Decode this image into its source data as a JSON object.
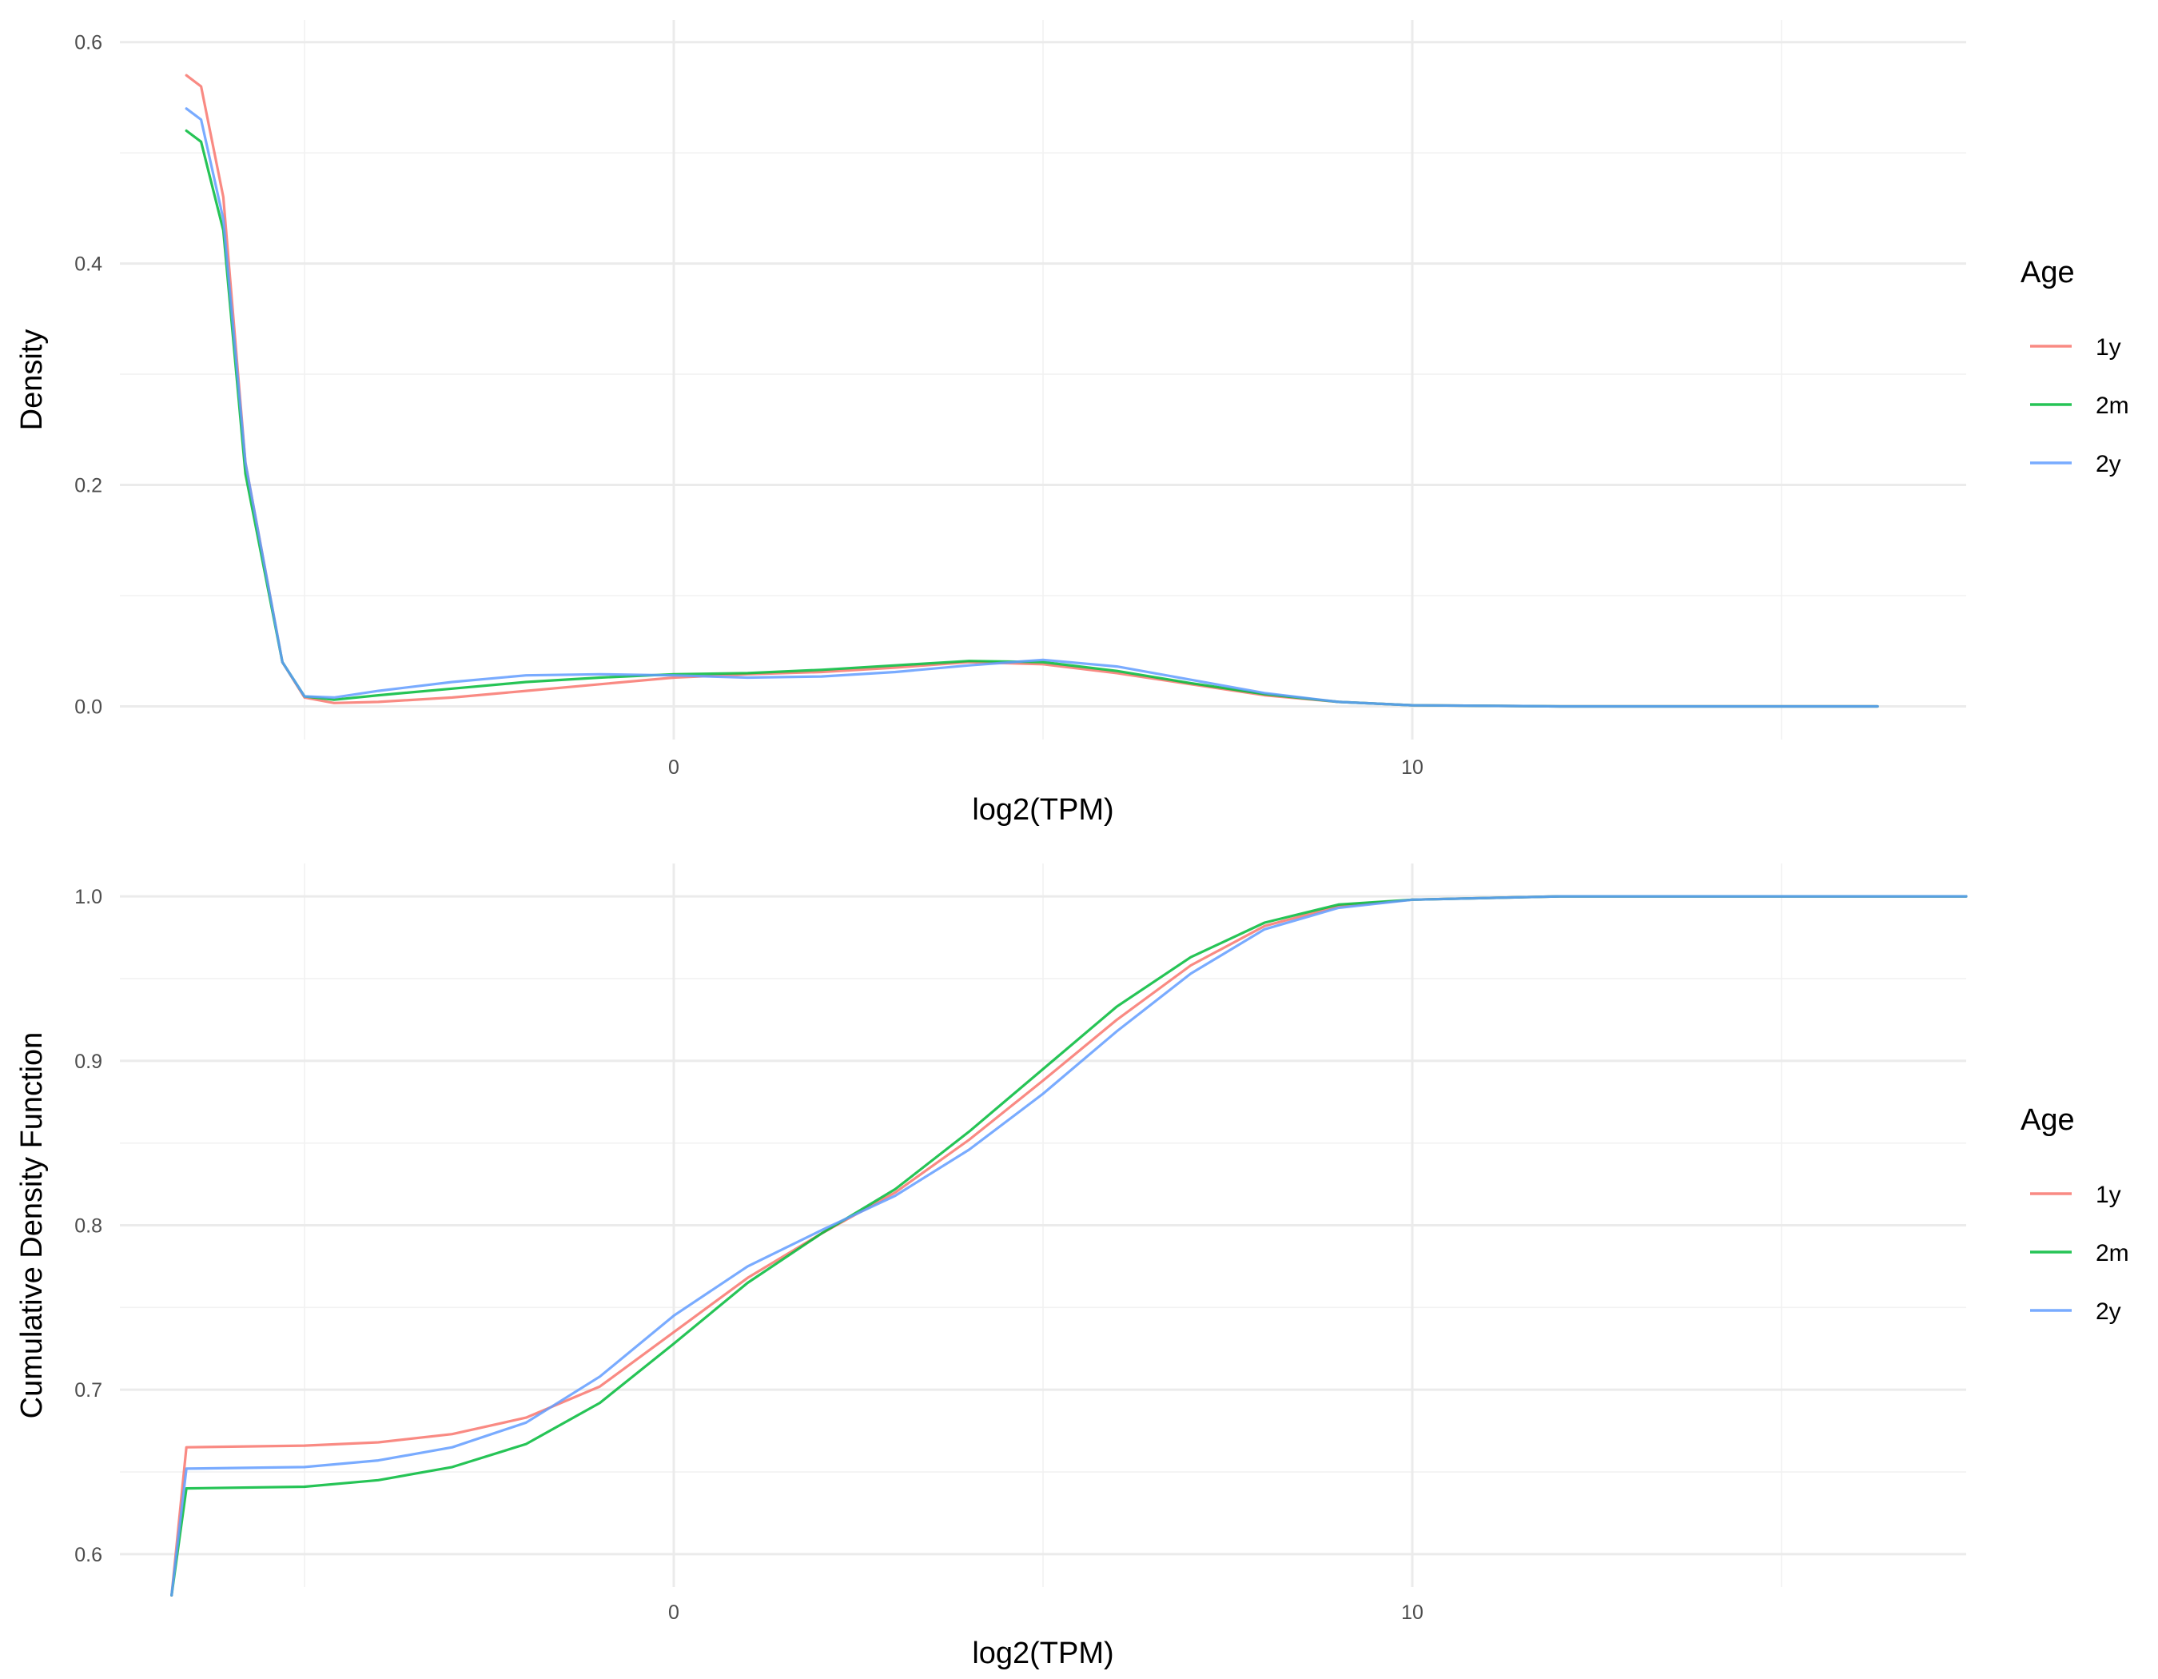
{
  "colors": {
    "1y": "#F8766D",
    "2m": "#00BA38",
    "2y": "#619CFF"
  },
  "chart_data": [
    {
      "type": "line",
      "xlabel": "log2(TPM)",
      "ylabel": "Density",
      "xlim": [
        -7.5,
        17.5
      ],
      "ylim": [
        -0.03,
        0.62
      ],
      "x_ticks": [
        0,
        10
      ],
      "x_tick_labels": [
        "0",
        "10"
      ],
      "y_ticks": [
        0.0,
        0.2,
        0.4,
        0.6
      ],
      "y_tick_labels": [
        "0.0",
        "0.2",
        "0.4",
        "0.6"
      ],
      "grid": true,
      "legend": {
        "title": "Age",
        "position": "right",
        "entries": [
          "1y",
          "2m",
          "2y"
        ]
      },
      "series": [
        {
          "name": "1y",
          "x": [
            -6.6,
            -6.4,
            -6.1,
            -5.8,
            -5.3,
            -5.0,
            -4.6,
            -4.0,
            -3.0,
            -2.0,
            -1.0,
            0.0,
            1.0,
            2.0,
            3.0,
            4.0,
            5.0,
            6.0,
            7.0,
            8.0,
            9.0,
            10.0,
            12.0,
            14.0,
            16.3
          ],
          "y": [
            0.57,
            0.56,
            0.46,
            0.22,
            0.04,
            0.008,
            0.003,
            0.004,
            0.008,
            0.014,
            0.02,
            0.026,
            0.029,
            0.031,
            0.035,
            0.04,
            0.038,
            0.03,
            0.02,
            0.01,
            0.004,
            0.001,
            0.0,
            0.0,
            0.0
          ]
        },
        {
          "name": "2m",
          "x": [
            -6.6,
            -6.4,
            -6.1,
            -5.8,
            -5.3,
            -5.0,
            -4.6,
            -4.0,
            -3.0,
            -2.0,
            -1.0,
            0.0,
            1.0,
            2.0,
            3.0,
            4.0,
            5.0,
            6.0,
            7.0,
            8.0,
            9.0,
            10.0,
            12.0,
            14.0,
            16.3
          ],
          "y": [
            0.52,
            0.51,
            0.43,
            0.21,
            0.04,
            0.009,
            0.006,
            0.01,
            0.016,
            0.022,
            0.026,
            0.029,
            0.03,
            0.033,
            0.037,
            0.041,
            0.04,
            0.032,
            0.021,
            0.011,
            0.004,
            0.001,
            0.0,
            0.0,
            0.0
          ]
        },
        {
          "name": "2y",
          "x": [
            -6.6,
            -6.4,
            -6.1,
            -5.8,
            -5.3,
            -5.0,
            -4.6,
            -4.0,
            -3.0,
            -2.0,
            -1.0,
            0.0,
            1.0,
            2.0,
            3.0,
            4.0,
            5.0,
            6.0,
            7.0,
            8.0,
            9.0,
            10.0,
            12.0,
            14.0,
            16.3
          ],
          "y": [
            0.54,
            0.53,
            0.44,
            0.22,
            0.04,
            0.009,
            0.008,
            0.014,
            0.022,
            0.028,
            0.029,
            0.028,
            0.026,
            0.027,
            0.031,
            0.037,
            0.042,
            0.036,
            0.024,
            0.012,
            0.004,
            0.001,
            0.0,
            0.0,
            0.0
          ]
        }
      ]
    },
    {
      "type": "line",
      "xlabel": "log2(TPM)",
      "ylabel": "Cumulative Density Function",
      "xlim": [
        -7.5,
        17.5
      ],
      "ylim": [
        0.58,
        1.02
      ],
      "x_ticks": [
        0,
        10
      ],
      "x_tick_labels": [
        "0",
        "10"
      ],
      "y_ticks": [
        0.6,
        0.7,
        0.8,
        0.9,
        1.0
      ],
      "y_tick_labels": [
        "0.6",
        "0.7",
        "0.8",
        "0.9",
        "1.0"
      ],
      "grid": true,
      "legend": {
        "title": "Age",
        "position": "right",
        "entries": [
          "1y",
          "2m",
          "2y"
        ]
      },
      "series": [
        {
          "name": "1y",
          "x": [
            -6.8,
            -6.6,
            -5.0,
            -4.0,
            -3.0,
            -2.0,
            -1.0,
            0.0,
            1.0,
            2.0,
            3.0,
            4.0,
            5.0,
            6.0,
            7.0,
            8.0,
            9.0,
            10.0,
            12.0,
            14.0,
            17.5
          ],
          "y": [
            0.575,
            0.665,
            0.666,
            0.668,
            0.673,
            0.683,
            0.702,
            0.735,
            0.768,
            0.795,
            0.82,
            0.852,
            0.888,
            0.925,
            0.958,
            0.982,
            0.994,
            0.998,
            1.0,
            1.0,
            1.0
          ]
        },
        {
          "name": "2m",
          "x": [
            -6.8,
            -6.6,
            -5.0,
            -4.0,
            -3.0,
            -2.0,
            -1.0,
            0.0,
            1.0,
            2.0,
            3.0,
            4.0,
            5.0,
            6.0,
            7.0,
            8.0,
            9.0,
            10.0,
            12.0,
            14.0,
            17.5
          ],
          "y": [
            0.575,
            0.64,
            0.641,
            0.645,
            0.653,
            0.667,
            0.692,
            0.728,
            0.765,
            0.795,
            0.822,
            0.857,
            0.895,
            0.933,
            0.963,
            0.984,
            0.995,
            0.998,
            1.0,
            1.0,
            1.0
          ]
        },
        {
          "name": "2y",
          "x": [
            -6.8,
            -6.6,
            -5.0,
            -4.0,
            -3.0,
            -2.0,
            -1.0,
            0.0,
            1.0,
            2.0,
            3.0,
            4.0,
            5.0,
            6.0,
            7.0,
            8.0,
            9.0,
            10.0,
            12.0,
            14.0,
            17.5
          ],
          "y": [
            0.575,
            0.652,
            0.653,
            0.657,
            0.665,
            0.68,
            0.708,
            0.745,
            0.775,
            0.797,
            0.818,
            0.846,
            0.88,
            0.918,
            0.953,
            0.98,
            0.993,
            0.998,
            1.0,
            1.0,
            1.0
          ]
        }
      ]
    }
  ]
}
